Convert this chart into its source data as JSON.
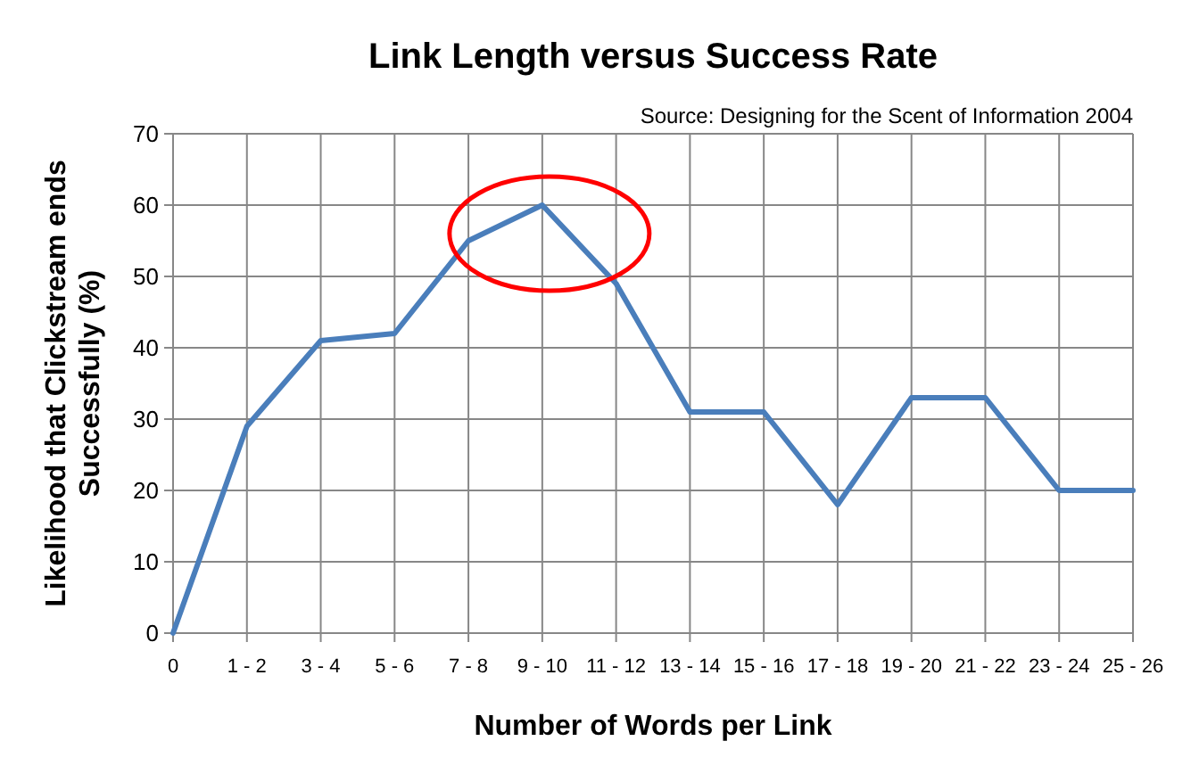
{
  "chart_data": {
    "type": "line",
    "title": "Link Length versus Success Rate",
    "xlabel": "Number of Words per Link",
    "ylabel": "Likelihood that Clickstream ends Successfully (%)",
    "annotations": [
      "Source: Designing for the Scent of Information 2004"
    ],
    "categories": [
      "0",
      "1 - 2",
      "3 - 4",
      "5 - 6",
      "7 - 8",
      "9 - 10",
      "11 - 12",
      "13 - 14",
      "15 - 16",
      "17 - 18",
      "19 - 20",
      "21 - 22",
      "23 - 24",
      "25 - 26"
    ],
    "series": [
      {
        "color": "#4a7ebb",
        "values": [
          0,
          29,
          41,
          42,
          55,
          60,
          49,
          31,
          31,
          18,
          33,
          33,
          20,
          20
        ]
      }
    ],
    "ylim": [
      0,
      70
    ],
    "yticks": [
      0,
      10,
      20,
      30,
      40,
      50,
      60,
      70
    ],
    "grid": true
  }
}
